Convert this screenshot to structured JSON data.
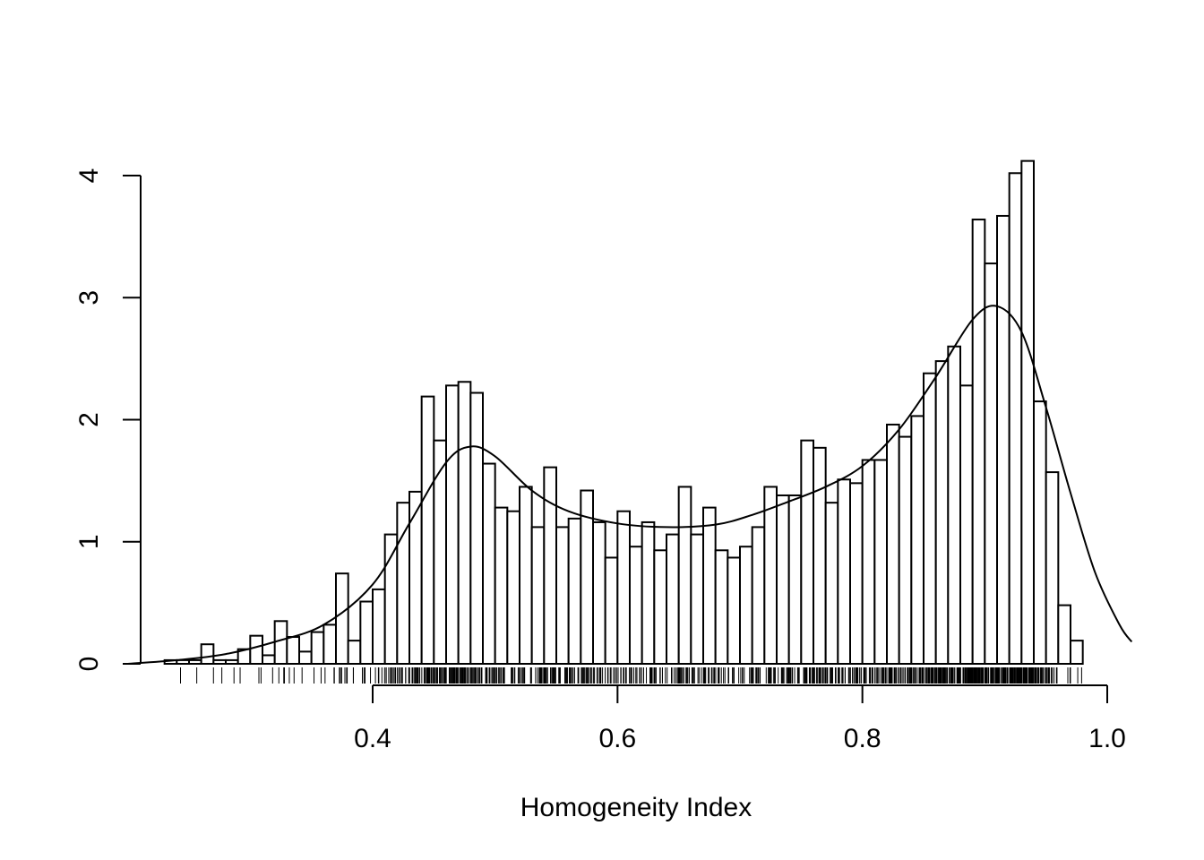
{
  "chart_data": {
    "type": "bar",
    "subtype": "histogram-with-density-and-rug",
    "xlabel": "Homogeneity Index",
    "ylabel": "",
    "title": "",
    "xlim": [
      0.2,
      1.02
    ],
    "ylim": [
      0,
      4.2
    ],
    "x_ticks": [
      0.4,
      0.6,
      0.8,
      1.0
    ],
    "x_tick_labels": [
      "0.4",
      "0.6",
      "0.8",
      "1.0"
    ],
    "y_ticks": [
      0,
      1,
      2,
      3,
      4
    ],
    "y_tick_labels": [
      "0",
      "1",
      "2",
      "3",
      "4"
    ],
    "bin_start": 0.23,
    "bin_width": 0.01,
    "bin_heights": [
      0.03,
      0.03,
      0.03,
      0.16,
      0.03,
      0.03,
      0.12,
      0.23,
      0.07,
      0.35,
      0.22,
      0.1,
      0.26,
      0.32,
      0.74,
      0.19,
      0.51,
      0.61,
      1.06,
      1.32,
      1.41,
      2.19,
      1.83,
      2.28,
      2.31,
      2.22,
      1.64,
      1.28,
      1.25,
      1.45,
      1.12,
      1.61,
      1.12,
      1.19,
      1.42,
      1.16,
      0.87,
      1.25,
      0.96,
      1.16,
      0.93,
      1.06,
      1.45,
      1.06,
      1.28,
      0.93,
      0.87,
      0.96,
      1.12,
      1.45,
      1.38,
      1.38,
      1.83,
      1.77,
      1.32,
      1.51,
      1.48,
      1.67,
      1.67,
      1.96,
      1.86,
      2.03,
      2.38,
      2.48,
      2.6,
      2.28,
      3.64,
      3.28,
      3.67,
      4.02,
      4.12,
      2.15,
      1.57,
      0.48,
      0.19
    ],
    "density_curve": [
      [
        0.2,
        0.0
      ],
      [
        0.24,
        0.03
      ],
      [
        0.28,
        0.08
      ],
      [
        0.32,
        0.18
      ],
      [
        0.36,
        0.32
      ],
      [
        0.4,
        0.65
      ],
      [
        0.43,
        1.15
      ],
      [
        0.46,
        1.65
      ],
      [
        0.48,
        1.78
      ],
      [
        0.5,
        1.7
      ],
      [
        0.53,
        1.42
      ],
      [
        0.56,
        1.25
      ],
      [
        0.6,
        1.15
      ],
      [
        0.64,
        1.12
      ],
      [
        0.68,
        1.14
      ],
      [
        0.71,
        1.22
      ],
      [
        0.74,
        1.33
      ],
      [
        0.77,
        1.45
      ],
      [
        0.8,
        1.62
      ],
      [
        0.83,
        1.92
      ],
      [
        0.86,
        2.35
      ],
      [
        0.89,
        2.82
      ],
      [
        0.91,
        2.93
      ],
      [
        0.93,
        2.72
      ],
      [
        0.95,
        2.1
      ],
      [
        0.97,
        1.4
      ],
      [
        0.99,
        0.75
      ],
      [
        1.01,
        0.32
      ],
      [
        1.02,
        0.18
      ]
    ],
    "rug_range": [
      0.24,
      0.985
    ]
  }
}
